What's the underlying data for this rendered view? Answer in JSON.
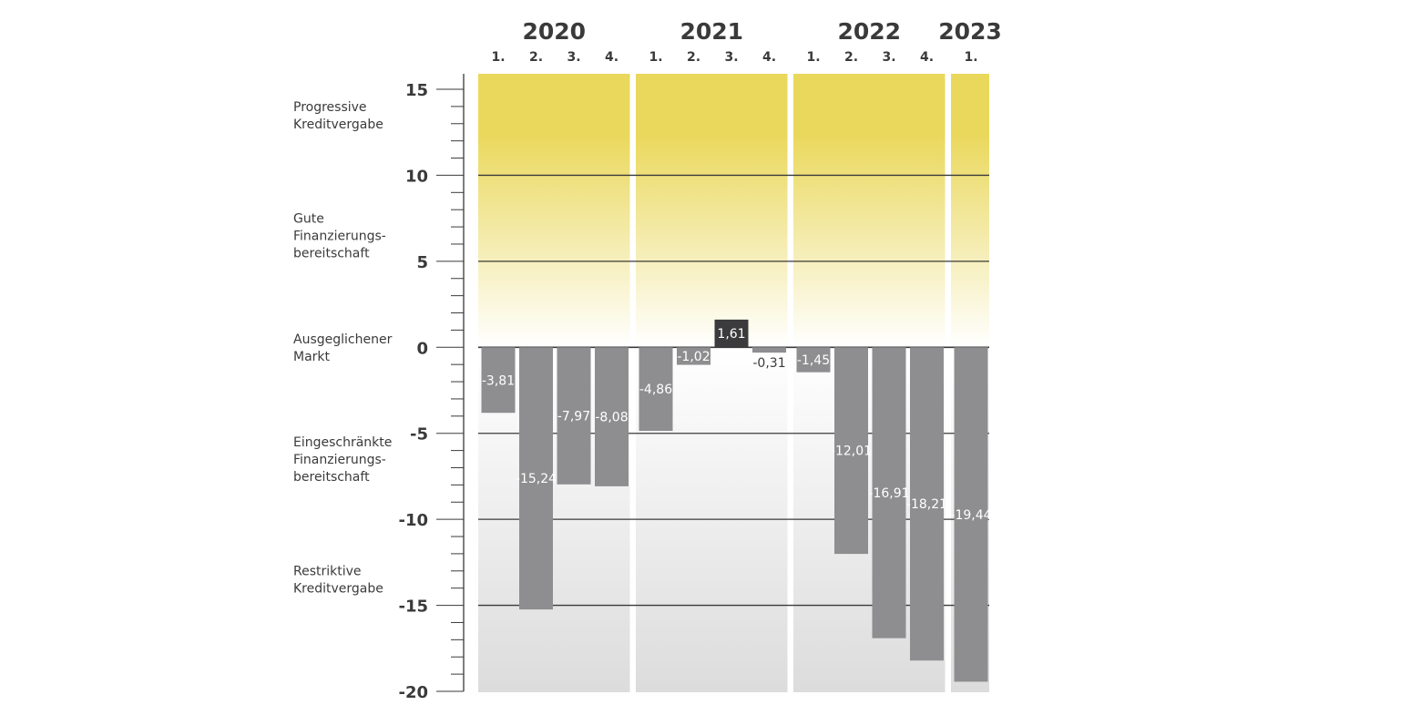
{
  "chart_data": {
    "type": "bar",
    "title": "",
    "xlabel": "",
    "ylabel": "",
    "ylim": [
      -20,
      15
    ],
    "yticks": [
      {
        "value": 15,
        "label": "15"
      },
      {
        "value": 10,
        "label": "10"
      },
      {
        "value": 5,
        "label": "5"
      },
      {
        "value": 0,
        "label": "0"
      },
      {
        "value": -5,
        "label": "-5"
      },
      {
        "value": -10,
        "label": "-10"
      },
      {
        "value": -15,
        "label": "-15"
      },
      {
        "value": -20,
        "label": "-20"
      }
    ],
    "gridlines": [
      10,
      5,
      0,
      -5,
      -10,
      -15
    ],
    "zones": [
      {
        "lines": [
          "Progressive",
          "Kreditvergabe"
        ],
        "center": 13.5
      },
      {
        "lines": [
          "Gute",
          "Finanzierungs-",
          "bereitschaft"
        ],
        "center": 6.5
      },
      {
        "lines": [
          "Ausgeglichener",
          "Markt"
        ],
        "center": 0
      },
      {
        "lines": [
          "Eingeschränkte",
          "Finanzierungs-",
          "bereitschaft"
        ],
        "center": -6.5
      },
      {
        "lines": [
          "Restriktive",
          "Kreditvergabe"
        ],
        "center": -13.5
      }
    ],
    "years": [
      {
        "label": "2020",
        "quarters": [
          {
            "label": "1.",
            "value": -3.81,
            "value_label": "-3,81"
          },
          {
            "label": "2.",
            "value": -15.24,
            "value_label": "-15,24"
          },
          {
            "label": "3.",
            "value": -7.97,
            "value_label": "-7,97"
          },
          {
            "label": "4.",
            "value": -8.08,
            "value_label": "-8,08"
          }
        ]
      },
      {
        "label": "2021",
        "quarters": [
          {
            "label": "1.",
            "value": -4.86,
            "value_label": "-4,86"
          },
          {
            "label": "2.",
            "value": -1.02,
            "value_label": "-1,02"
          },
          {
            "label": "3.",
            "value": 1.61,
            "value_label": "1,61"
          },
          {
            "label": "4.",
            "value": -0.31,
            "value_label": "-0,31"
          }
        ]
      },
      {
        "label": "2022",
        "quarters": [
          {
            "label": "1.",
            "value": -1.45,
            "value_label": "-1,45"
          },
          {
            "label": "2.",
            "value": -12.01,
            "value_label": "-12,01"
          },
          {
            "label": "3.",
            "value": -16.91,
            "value_label": "-16,91"
          },
          {
            "label": "4.",
            "value": -18.21,
            "value_label": "-18,21"
          }
        ]
      },
      {
        "label": "2023",
        "quarters": [
          {
            "label": "1.",
            "value": -19.44,
            "value_label": "-19,44"
          }
        ]
      }
    ],
    "colors": {
      "bar_negative": "#8e8e90",
      "bar_positive": "#3b3b3d",
      "positive_zone_top": "#ead85c",
      "positive_zone_bottom": "#ffffff",
      "negative_zone_top": "#ffffff",
      "negative_zone_bottom": "#dcdcdd",
      "gridline": "#3a3a3a",
      "axis": "#3a3a3a",
      "text": "#3a3a3a"
    }
  }
}
